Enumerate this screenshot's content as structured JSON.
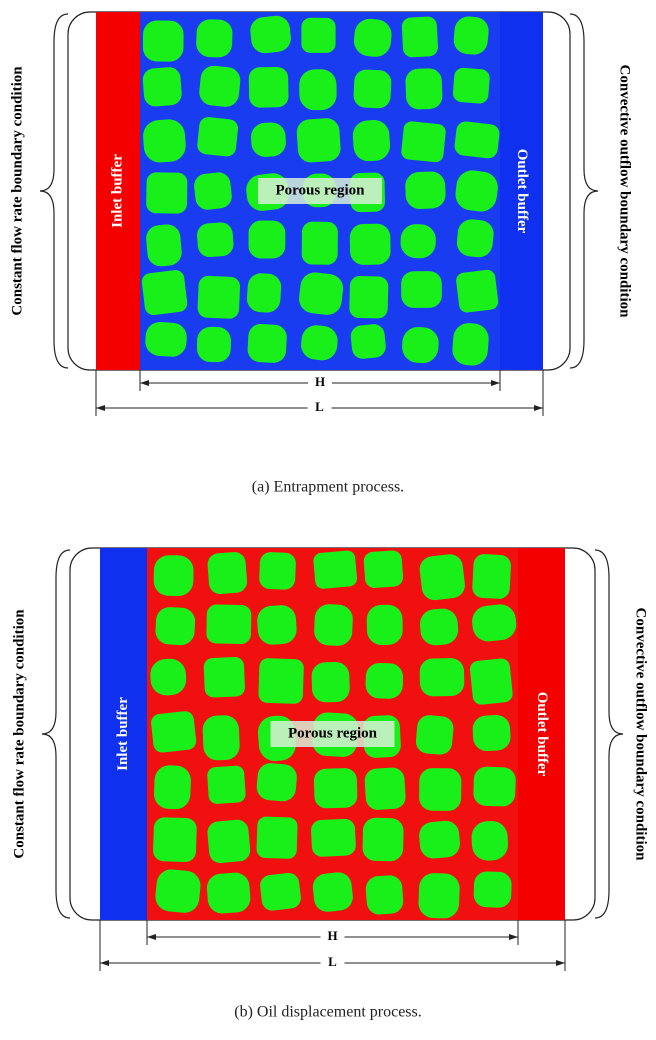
{
  "panels": [
    {
      "left_label": "Constant flow rate boundary condition",
      "inlet_label": "Inlet buffer",
      "porous_label": "Porous region",
      "outlet_label": "Outlet buffer",
      "right_label": "Convective outflow boundary condition",
      "h_label": "H",
      "l_label": "L",
      "caption": "(a) Entrapment process."
    },
    {
      "left_label": "Constant flow rate boundary condition",
      "inlet_label": "Inlet buffer",
      "porous_label": "Porous region",
      "outlet_label": "Outlet buffer",
      "right_label": "Convective outflow boundary condition",
      "h_label": "H",
      "l_label": "L",
      "caption": "(b) Oil displacement process."
    }
  ]
}
